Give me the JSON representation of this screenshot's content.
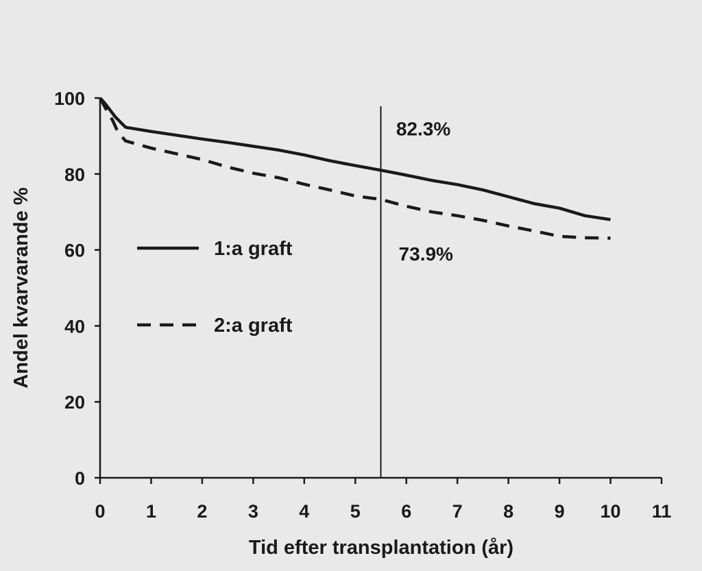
{
  "chart_data": {
    "type": "line",
    "xlabel": "Tid efter transplantation (år)",
    "ylabel": "Andel kvarvarande %",
    "xlim": [
      0,
      11
    ],
    "ylim": [
      0,
      100
    ],
    "x_ticks": [
      "0",
      "1",
      "2",
      "3",
      "4",
      "5",
      "6",
      "7",
      "8",
      "9",
      "10",
      "11"
    ],
    "y_ticks": [
      "0",
      "20",
      "40",
      "60",
      "80",
      "100"
    ],
    "grid": false,
    "legend_position": "center-left",
    "series": [
      {
        "name": "1:a graft",
        "style": "solid",
        "color": "#1a1a1a",
        "x": [
          0,
          0.1,
          0.3,
          0.5,
          1,
          1.5,
          2,
          2.5,
          3,
          3.5,
          4,
          4.5,
          5,
          5.5,
          6,
          6.5,
          7,
          7.5,
          8,
          8.5,
          9,
          9.5,
          10
        ],
        "y": [
          100,
          98.5,
          95,
          92.3,
          91.2,
          90.2,
          89.2,
          88.3,
          87.3,
          86.3,
          85,
          83.5,
          82.2,
          81,
          79.7,
          78.3,
          77.2,
          75.8,
          74,
          72.2,
          71,
          69,
          68
        ]
      },
      {
        "name": "2:a graft",
        "style": "dashed",
        "color": "#1a1a1a",
        "x": [
          0,
          0.1,
          0.25,
          0.35,
          0.5,
          1,
          1.5,
          2,
          2.5,
          3,
          3.5,
          4,
          4.5,
          5,
          5.5,
          6,
          6.5,
          7,
          7.5,
          8,
          8.5,
          9,
          9.5,
          10
        ],
        "y": [
          100,
          97.5,
          94,
          91,
          88.7,
          86.8,
          85.3,
          83.8,
          81.8,
          80.2,
          79,
          77.3,
          75.8,
          74.2,
          73.3,
          71.5,
          70,
          69,
          67.8,
          66.3,
          65,
          63.6,
          63.2,
          63.1
        ]
      }
    ],
    "vertical_marker": {
      "x": 5.5
    },
    "annotations": [
      {
        "text": "82.3%",
        "x": 5.8,
        "y": 92
      },
      {
        "text": "73.9%",
        "x": 5.85,
        "y": 59
      }
    ]
  }
}
